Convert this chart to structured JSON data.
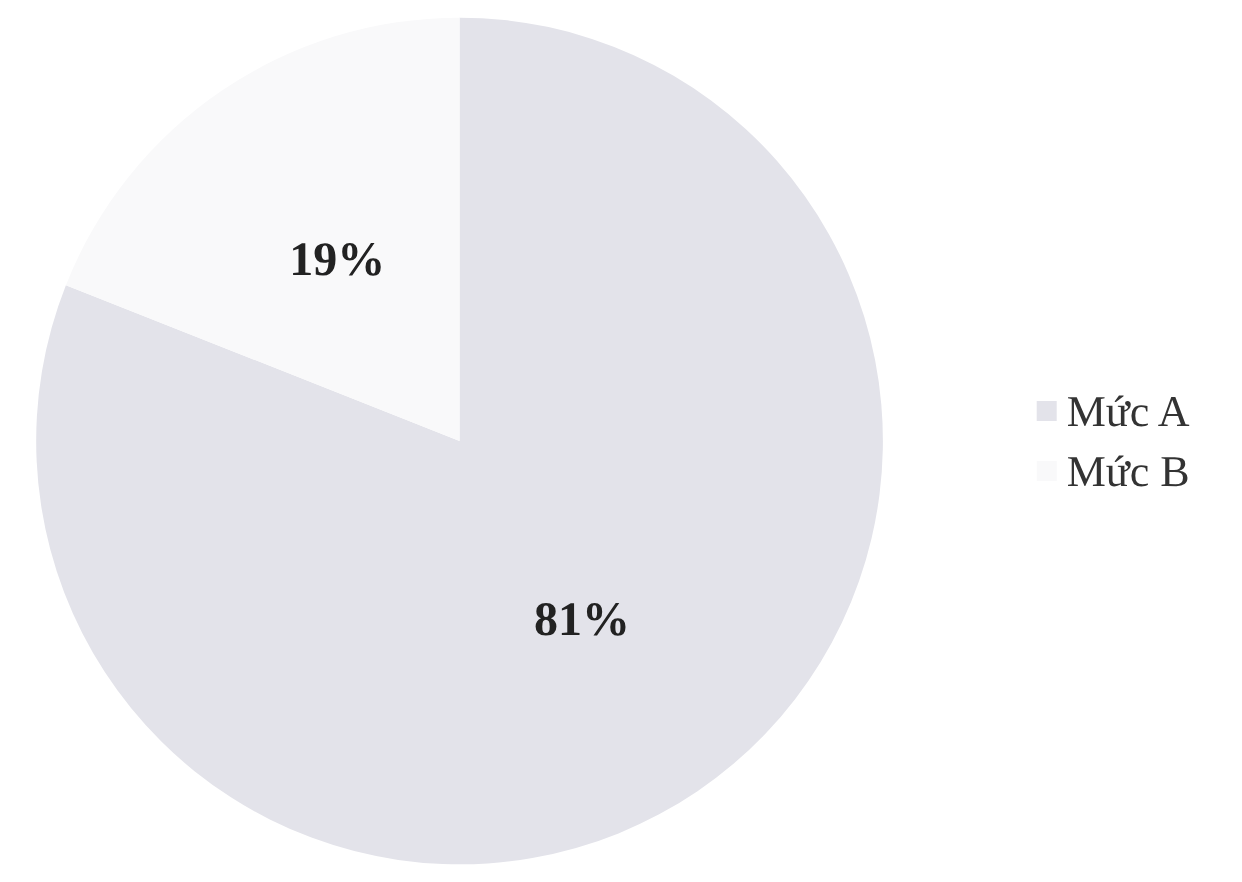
{
  "chart_data": {
    "type": "pie",
    "categories": [
      "Mức A",
      "Mức B"
    ],
    "values": [
      81,
      19
    ],
    "value_labels": [
      "81%",
      "19%"
    ],
    "colors": [
      "#e3e3ea",
      "#f9f9fa"
    ],
    "legend": "right"
  }
}
